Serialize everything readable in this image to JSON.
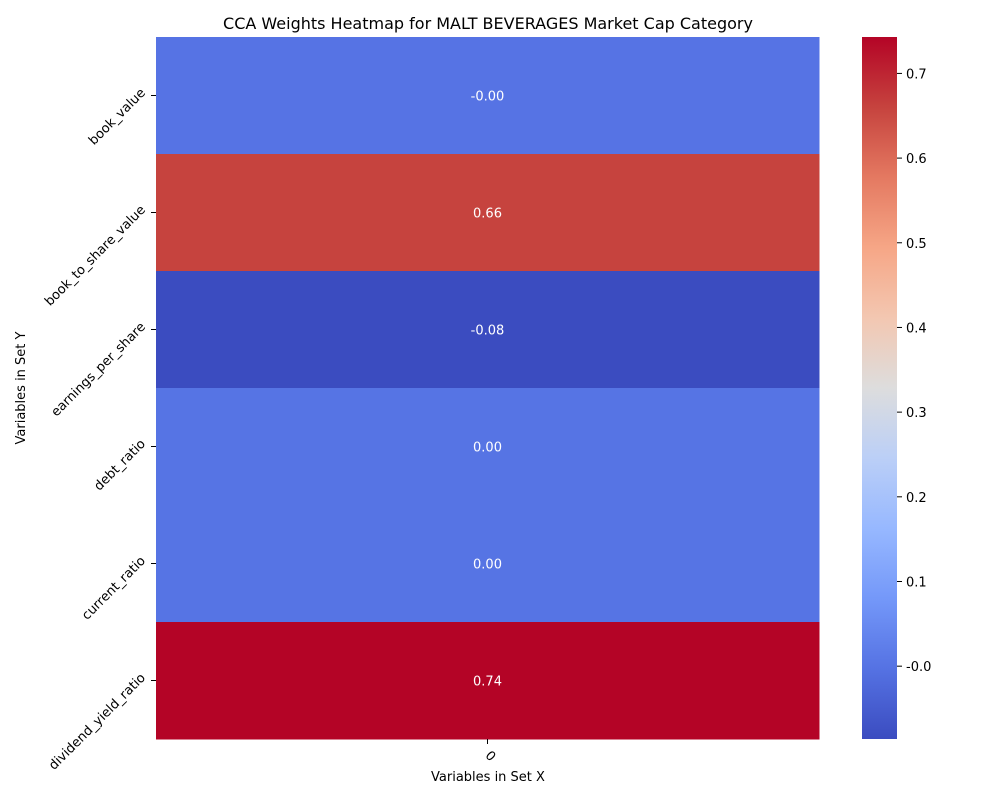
{
  "chart_data": {
    "type": "heatmap",
    "title": "CCA Weights Heatmap for MALT BEVERAGES Market Cap Category",
    "xlabel": "Variables in Set X",
    "ylabel": "Variables in Set Y",
    "x_categories": [
      "0"
    ],
    "y_categories": [
      "book_value",
      "book_to_share_value",
      "earnings_per_share",
      "debt_ratio",
      "current_ratio",
      "dividend_yield_ratio"
    ],
    "values": [
      [
        -0.0002
      ],
      [
        0.66
      ],
      [
        -0.085
      ],
      [
        0.0002
      ],
      [
        0.0002
      ],
      [
        0.743
      ]
    ],
    "value_labels": [
      "-0.00",
      "0.66",
      "-0.08",
      "0.00",
      "0.00",
      "0.74"
    ],
    "colormap": "coolwarm",
    "vmin": -0.086,
    "vmax": 0.743,
    "colorbar_ticks": [
      "-0.0",
      "0.1",
      "0.2",
      "0.3",
      "0.4",
      "0.5",
      "0.6",
      "0.7"
    ],
    "colorbar_tick_values": [
      0.0,
      0.1,
      0.2,
      0.3,
      0.4,
      0.5,
      0.6,
      0.7
    ],
    "colors": {
      "cool": "#3b4cc0",
      "mid": "#dddddd",
      "warm": "#b40426"
    }
  }
}
